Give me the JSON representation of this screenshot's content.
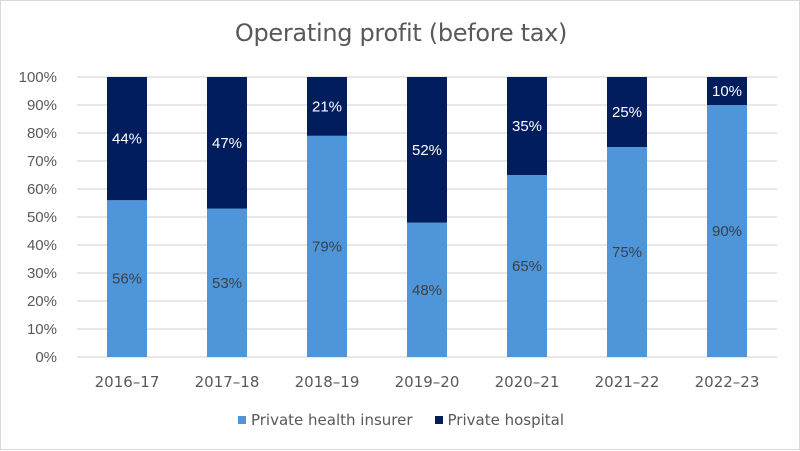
{
  "chart_data": {
    "type": "bar",
    "stacked": true,
    "title": "Operating profit (before tax)",
    "xlabel": "",
    "ylabel": "",
    "ylim": [
      0,
      100
    ],
    "y_ticks": [
      "0%",
      "10%",
      "20%",
      "30%",
      "40%",
      "50%",
      "60%",
      "70%",
      "80%",
      "90%",
      "100%"
    ],
    "grid": true,
    "legend_position": "bottom",
    "categories": [
      "2016–17",
      "2017–18",
      "2018–19",
      "2019–20",
      "2020–21",
      "2021–22",
      "2022–23"
    ],
    "series": [
      {
        "name": "Private health insurer",
        "color": "#4e95d9",
        "label_color": "#404040",
        "values": [
          56,
          53,
          79,
          48,
          65,
          75,
          90
        ],
        "labels": [
          "56%",
          "53%",
          "79%",
          "48%",
          "65%",
          "75%",
          "90%"
        ]
      },
      {
        "name": "Private hospital",
        "color": "#021d5e",
        "label_color": "#ffffff",
        "values": [
          44,
          47,
          21,
          52,
          35,
          25,
          10
        ],
        "labels": [
          "44%",
          "47%",
          "21%",
          "52%",
          "35%",
          "25%",
          "10%"
        ]
      }
    ]
  }
}
